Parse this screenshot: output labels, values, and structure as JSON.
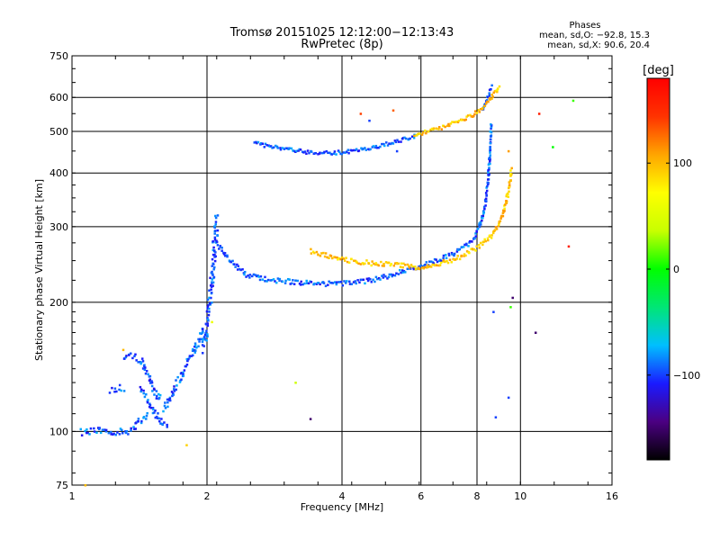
{
  "chart_data": {
    "type": "scatter",
    "title": "Tromsø 20151025 12:12:00−12:13:43",
    "subtitle": "RwPretec (8p)",
    "xlabel": "Frequency [MHz]",
    "ylabel": "Stationary phase Virtual Height [km]",
    "x_scale": "log2",
    "y_scale": "log",
    "xlim": [
      1,
      16
    ],
    "ylim": [
      75,
      750
    ],
    "x_ticks": [
      1,
      2,
      4,
      6,
      8,
      10,
      16
    ],
    "x_tick_labels": [
      "1",
      "2",
      "4",
      "6",
      "8",
      "10",
      "16"
    ],
    "y_ticks": [
      75,
      100,
      200,
      300,
      400,
      500,
      600,
      750
    ],
    "y_tick_labels": [
      "75",
      "100",
      "200",
      "300",
      "400",
      "500",
      "600",
      "750"
    ],
    "grid": true,
    "phase_stats": {
      "heading": "Phases",
      "line_o": "mean, sd,O: −92.8, 15.3",
      "line_x": "mean, sd,X:  90.6, 20.4"
    },
    "colorbar": {
      "label": "[deg]",
      "range": [
        -180,
        180
      ],
      "ticks": [
        100,
        0,
        -100
      ],
      "tick_labels": [
        "100",
        "0",
        "−100"
      ],
      "colors": [
        "#000000",
        "#4b0082",
        "#1a1aff",
        "#00bfff",
        "#00e676",
        "#00ff00",
        "#c8ff00",
        "#ffff00",
        "#ffa500",
        "#ff3300",
        "#ff0000"
      ]
    },
    "series": [
      {
        "segments": [
          {
            "x": [
              1.05,
              1.12,
              1.18,
              1.24,
              1.31,
              1.36,
              1.42,
              1.48
            ],
            "y": [
              100,
              100,
              101,
              100,
              100,
              101,
              106,
              110
            ],
            "phase": -95,
            "spread": 0.04
          },
          {
            "x": [
              1.22,
              1.26,
              1.31
            ],
            "y": [
              125,
              126,
              127
            ],
            "phase": -95,
            "spread": 0.04
          },
          {
            "x": [
              1.3,
              1.34,
              1.38,
              1.43,
              1.48,
              1.53,
              1.58
            ],
            "y": [
              147,
              150,
              149,
              146,
              135,
              124,
              118
            ],
            "phase": -95,
            "spread": 0.04
          },
          {
            "x": [
              1.42,
              1.46,
              1.5,
              1.55,
              1.6,
              1.64
            ],
            "y": [
              125,
              120,
              114,
              108,
              104,
              105
            ],
            "phase": -95,
            "spread": 0.04
          },
          {
            "x": [
              1.6,
              1.66,
              1.72,
              1.78,
              1.84,
              1.9,
              1.96
            ],
            "y": [
              112,
              121,
              130,
              140,
              150,
              162,
              175
            ],
            "phase": -95,
            "spread": 0.05
          },
          {
            "x": [
              1.96,
              2.0,
              2.04,
              2.07,
              2.1
            ],
            "y": [
              155,
              175,
              210,
              260,
              320
            ],
            "phase": -95,
            "spread": 0.07
          },
          {
            "x": [
              2.1,
              2.18,
              2.3,
              2.45,
              2.7,
              3.0,
              3.3,
              3.6,
              3.9,
              4.2,
              4.5,
              4.8,
              5.1,
              5.4,
              5.7,
              6.0,
              6.4,
              6.8,
              7.2,
              7.6,
              7.9,
              8.1,
              8.3,
              8.45,
              8.55,
              8.6
            ],
            "y": [
              275,
              260,
              245,
              232,
              226,
              224,
              222,
              221,
              221,
              222,
              224,
              227,
              231,
              236,
              240,
              244,
              249,
              255,
              262,
              272,
              284,
              300,
              330,
              380,
              450,
              520
            ],
            "phase": -95,
            "spread": 0.025
          },
          {
            "x": [
              2.55,
              2.8,
              3.1,
              3.5,
              4.0,
              4.4,
              4.8,
              5.2,
              5.6,
              5.9
            ],
            "y": [
              470,
              460,
              452,
              446,
              447,
              454,
              462,
              472,
              483,
              492
            ],
            "phase": -95,
            "spread": 0.02
          },
          {
            "x": [
              8.2,
              8.4,
              8.55,
              8.65
            ],
            "y": [
              560,
              590,
              620,
              640
            ],
            "phase": -95,
            "spread": 0.02
          }
        ]
      },
      {
        "segments": [
          {
            "x": [
              3.4,
              3.7,
              4.0,
              4.3,
              4.6,
              4.9,
              5.2,
              5.5,
              5.8
            ],
            "y": [
              263,
              257,
              252,
              249,
              247,
              246,
              245,
              244,
              244
            ],
            "phase": 95,
            "spread": 0.025
          },
          {
            "x": [
              5.8,
              6.2,
              6.6,
              7.0,
              7.4,
              7.8,
              8.2,
              8.6,
              8.9,
              9.1,
              9.3,
              9.45,
              9.55
            ],
            "y": [
              240,
              242,
              246,
              251,
              257,
              264,
              273,
              286,
              302,
              320,
              345,
              375,
              410
            ],
            "phase": 95,
            "spread": 0.025
          },
          {
            "x": [
              5.8,
              6.2,
              6.6,
              7.0,
              7.4,
              7.8,
              8.2,
              8.5,
              8.8,
              9.0
            ],
            "y": [
              490,
              500,
              510,
              520,
              532,
              546,
              565,
              590,
              620,
              640
            ],
            "phase": 95,
            "spread": 0.02
          }
        ]
      }
    ],
    "isolated_points": [
      {
        "x": 1.07,
        "y": 75,
        "phase": 100
      },
      {
        "x": 1.3,
        "y": 155,
        "phase": 100
      },
      {
        "x": 1.8,
        "y": 93,
        "phase": 90
      },
      {
        "x": 2.05,
        "y": 180,
        "phase": 60
      },
      {
        "x": 3.15,
        "y": 130,
        "phase": 40
      },
      {
        "x": 3.4,
        "y": 107,
        "phase": -150
      },
      {
        "x": 4.4,
        "y": 550,
        "phase": 140
      },
      {
        "x": 5.2,
        "y": 560,
        "phase": 130
      },
      {
        "x": 5.3,
        "y": 450,
        "phase": -100
      },
      {
        "x": 4.6,
        "y": 530,
        "phase": -100
      },
      {
        "x": 9.4,
        "y": 450,
        "phase": 110
      },
      {
        "x": 9.6,
        "y": 205,
        "phase": -150
      },
      {
        "x": 9.4,
        "y": 120,
        "phase": -100
      },
      {
        "x": 8.8,
        "y": 108,
        "phase": -100
      },
      {
        "x": 8.7,
        "y": 190,
        "phase": -100
      },
      {
        "x": 9.5,
        "y": 195,
        "phase": 10
      },
      {
        "x": 10.8,
        "y": 170,
        "phase": -150
      },
      {
        "x": 11.8,
        "y": 460,
        "phase": 0
      },
      {
        "x": 11.0,
        "y": 550,
        "phase": 160
      },
      {
        "x": 12.8,
        "y": 270,
        "phase": 160
      },
      {
        "x": 13.1,
        "y": 590,
        "phase": 10
      }
    ]
  }
}
